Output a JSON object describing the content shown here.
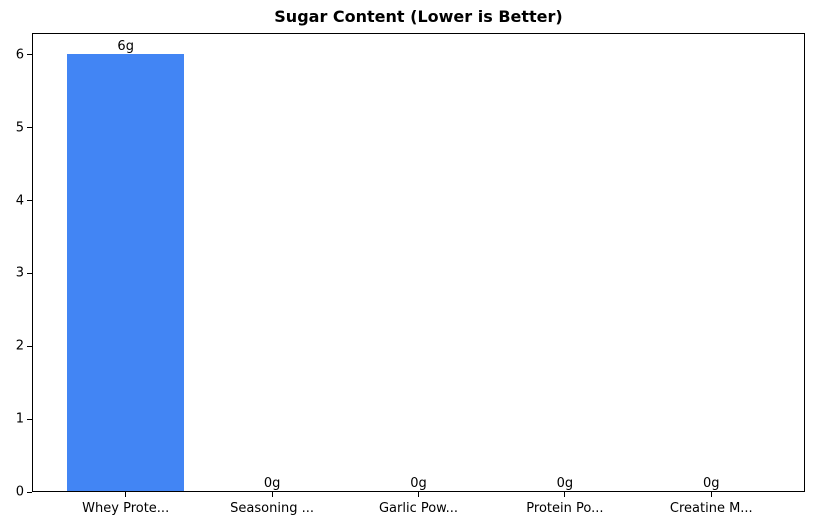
{
  "chart_data": {
    "type": "bar",
    "title": "Sugar Content (Lower is Better)",
    "categories": [
      "Whey Prote...",
      "Seasoning ...",
      "Garlic Pow...",
      "Protein Po...",
      "Creatine M..."
    ],
    "values": [
      6,
      0,
      0,
      0,
      0
    ],
    "bar_labels": [
      "6g",
      "0g",
      "0g",
      "0g",
      "0g"
    ],
    "xlabel": "",
    "ylabel": "",
    "yticks": [
      0,
      1,
      2,
      3,
      4,
      5,
      6
    ],
    "ylim": [
      0,
      6.3
    ],
    "bar_width_fraction": 0.8,
    "x_margin_units": 0.64,
    "grid": false,
    "legend": null,
    "bar_color": "#4285F4",
    "axis_color": "#000000",
    "text_color": "#000000",
    "background_color": "#ffffff"
  }
}
